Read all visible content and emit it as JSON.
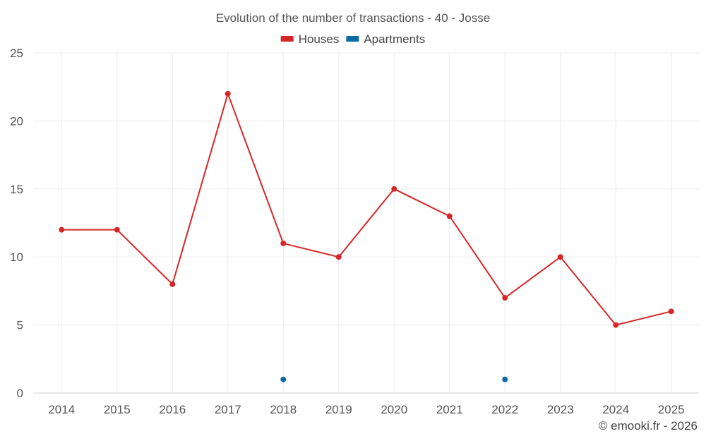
{
  "chart_data": {
    "type": "line",
    "title": "Evolution of the number of transactions - 40 - Josse",
    "xlabel": "",
    "ylabel": "",
    "categories": [
      "2014",
      "2015",
      "2016",
      "2017",
      "2018",
      "2019",
      "2020",
      "2021",
      "2022",
      "2023",
      "2024",
      "2025"
    ],
    "ylim": [
      0,
      25
    ],
    "yticks": [
      0,
      5,
      10,
      15,
      20,
      25
    ],
    "grid": true,
    "legend_position": "top-center",
    "series": [
      {
        "name": "Houses",
        "color": "#d62728",
        "values": [
          12,
          12,
          8,
          22,
          11,
          10,
          15,
          13,
          7,
          10,
          5,
          6
        ]
      },
      {
        "name": "Apartments",
        "color": "#0a6aa1",
        "values": [
          null,
          null,
          null,
          null,
          1,
          null,
          null,
          null,
          1,
          null,
          null,
          null
        ]
      }
    ],
    "credit": "© emooki.fr - 2026"
  }
}
